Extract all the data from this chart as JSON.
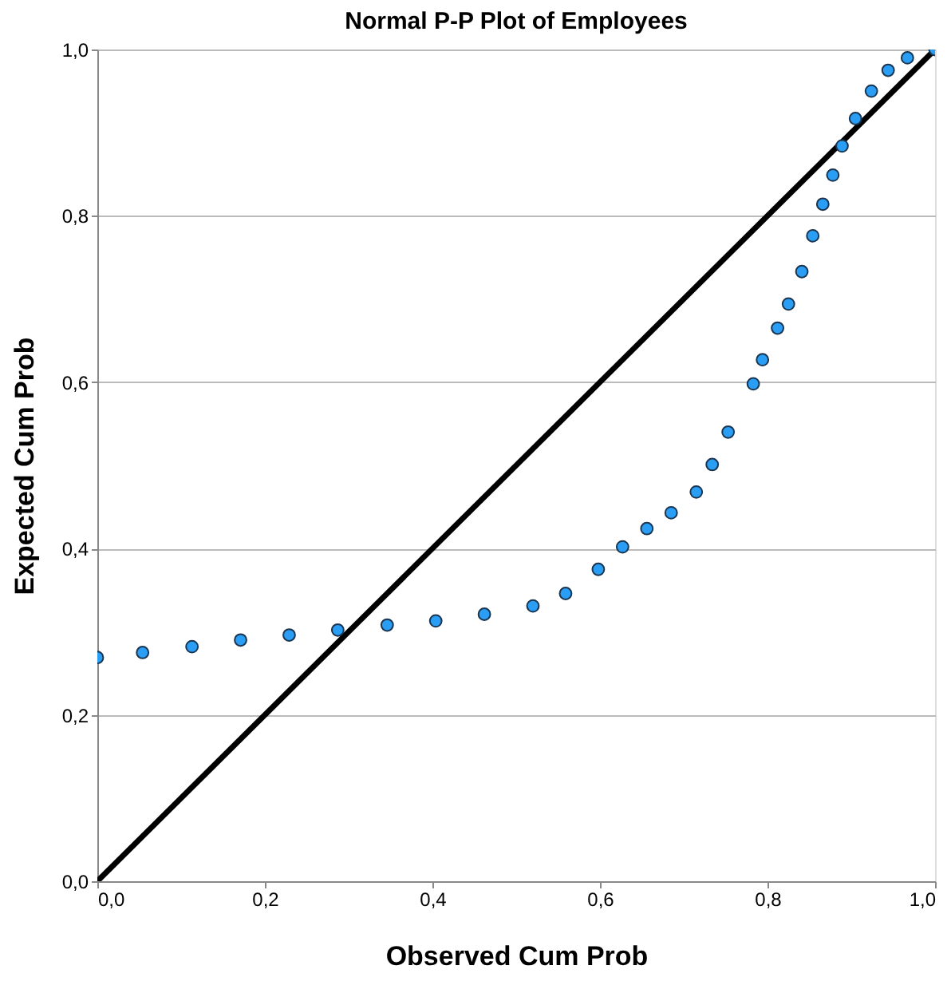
{
  "chart_data": {
    "type": "scatter",
    "title": "Normal P-P Plot of Employees",
    "xlabel": "Observed Cum Prob",
    "ylabel": "Expected Cum Prob",
    "xlim": [
      0,
      1
    ],
    "ylim": [
      0,
      1
    ],
    "xticks": [
      {
        "value": 0,
        "label": "0,0"
      },
      {
        "value": 0.2,
        "label": "0,2"
      },
      {
        "value": 0.4,
        "label": "0,4"
      },
      {
        "value": 0.6,
        "label": "0,6"
      },
      {
        "value": 0.8,
        "label": "0,8"
      },
      {
        "value": 1,
        "label": "1,0"
      }
    ],
    "yticks": [
      {
        "value": 0,
        "label": "0,0"
      },
      {
        "value": 0.2,
        "label": "0,2"
      },
      {
        "value": 0.4,
        "label": "0,4"
      },
      {
        "value": 0.6,
        "label": "0,6"
      },
      {
        "value": 0.8,
        "label": "0,8"
      },
      {
        "value": 1,
        "label": "1,0"
      }
    ],
    "grid": "y",
    "marker": "circle",
    "series": [
      {
        "type": "line",
        "color": "#000000",
        "line_style": "solid",
        "marker": "none",
        "x": [
          0,
          1
        ],
        "values": [
          0,
          1
        ]
      },
      {
        "type": "scatter",
        "color": "#2a9df4",
        "x": [
          0.0,
          0.054,
          0.113,
          0.171,
          0.229,
          0.287,
          0.346,
          0.404,
          0.462,
          0.52,
          0.559,
          0.598,
          0.627,
          0.656,
          0.685,
          0.715,
          0.734,
          0.753,
          0.783,
          0.794,
          0.812,
          0.825,
          0.841,
          0.854,
          0.866,
          0.878,
          0.889,
          0.905,
          0.924,
          0.944,
          0.967,
          1.0
        ],
        "values": [
          0.269,
          0.275,
          0.282,
          0.29,
          0.296,
          0.302,
          0.308,
          0.313,
          0.321,
          0.331,
          0.346,
          0.375,
          0.402,
          0.424,
          0.443,
          0.468,
          0.501,
          0.54,
          0.598,
          0.627,
          0.665,
          0.694,
          0.733,
          0.776,
          0.814,
          0.849,
          0.884,
          0.917,
          0.95,
          0.975,
          0.99,
          1.0
        ]
      }
    ]
  }
}
